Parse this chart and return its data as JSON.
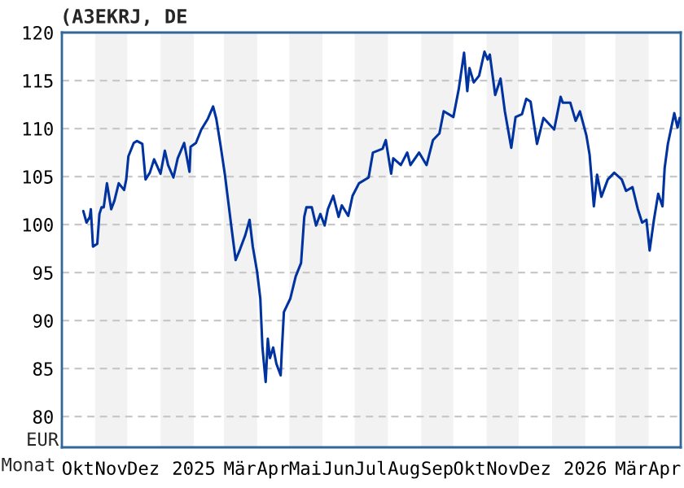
{
  "chart_data": {
    "type": "line",
    "title": "(A3EKRJ, DE",
    "xlabel": "Monat",
    "ylabel": "EUR",
    "x": [
      "2024-10-21",
      "2024-10-24",
      "2024-10-27",
      "2024-10-28",
      "2024-10-30",
      "2024-11-03",
      "2024-11-05",
      "2024-11-07",
      "2024-11-09",
      "2024-11-12",
      "2024-11-16",
      "2024-11-19",
      "2024-11-23",
      "2024-11-28",
      "2024-11-30",
      "2024-12-02",
      "2024-12-07",
      "2024-12-10",
      "2024-12-15",
      "2024-12-18",
      "2024-12-22",
      "2024-12-26",
      "2025-01-01",
      "2025-01-05",
      "2025-01-08",
      "2025-01-13",
      "2025-01-17",
      "2025-01-23",
      "2025-01-28",
      "2025-01-29",
      "2025-02-03",
      "2025-02-08",
      "2025-02-14",
      "2025-02-19",
      "2025-02-22",
      "2025-02-26",
      "2025-03-02",
      "2025-03-05",
      "2025-03-08",
      "2025-03-12",
      "2025-03-16",
      "2025-03-21",
      "2025-03-25",
      "2025-03-28",
      "2025-04-01",
      "2025-04-04",
      "2025-04-06",
      "2025-04-09",
      "2025-04-11",
      "2025-04-13",
      "2025-04-16",
      "2025-04-19",
      "2025-04-23",
      "2025-04-24",
      "2025-04-26",
      "2025-05-02",
      "2025-05-07",
      "2025-05-12",
      "2025-05-15",
      "2025-05-17",
      "2025-05-22",
      "2025-05-26",
      "2025-05-30",
      "2025-06-03",
      "2025-06-06",
      "2025-06-11",
      "2025-06-16",
      "2025-06-19",
      "2025-06-25",
      "2025-06-29",
      "2025-07-05",
      "2025-07-14",
      "2025-07-18",
      "2025-07-27",
      "2025-07-30",
      "2025-08-04",
      "2025-08-06",
      "2025-08-13",
      "2025-08-19",
      "2025-08-22",
      "2025-08-30",
      "2025-09-06",
      "2025-09-12",
      "2025-09-18",
      "2025-09-22",
      "2025-10-01",
      "2025-10-06",
      "2025-10-11",
      "2025-10-14",
      "2025-10-16",
      "2025-10-20",
      "2025-10-25",
      "2025-10-30",
      "2025-11-02",
      "2025-11-04",
      "2025-11-09",
      "2025-11-14",
      "2025-11-18",
      "2025-11-24",
      "2025-11-28",
      "2025-12-04",
      "2025-12-08",
      "2025-12-12",
      "2025-12-18",
      "2025-12-24",
      "2026-01-03",
      "2026-01-09",
      "2026-01-11",
      "2026-01-18",
      "2026-01-23",
      "2026-01-27",
      "2026-02-02",
      "2026-02-05",
      "2026-02-09",
      "2026-02-12",
      "2026-02-16",
      "2026-02-22",
      "2026-02-28",
      "2026-03-07",
      "2026-03-11",
      "2026-03-17",
      "2026-03-22",
      "2026-03-26",
      "2026-03-30",
      "2026-04-02",
      "2026-04-06",
      "2026-04-10",
      "2026-04-14",
      "2026-04-16",
      "2026-04-19",
      "2026-04-25",
      "2026-04-28",
      "2026-04-30"
    ],
    "series": [
      {
        "color": "#0033a0",
        "values": [
          101.4,
          100.2,
          100.8,
          101.6,
          97.7,
          98,
          101.1,
          101.8,
          101.8,
          104.3,
          101.6,
          102.5,
          104.3,
          103.6,
          104.7,
          107.1,
          108.5,
          108.7,
          108.4,
          104.7,
          105.4,
          106.8,
          105.3,
          107.7,
          106.2,
          104.9,
          106.9,
          108.5,
          105.5,
          108.1,
          108.5,
          109.9,
          111,
          112.3,
          111,
          108.2,
          105.2,
          102.5,
          99.8,
          96.3,
          97.4,
          98.9,
          100.5,
          97.7,
          95.1,
          92.3,
          87.2,
          83.6,
          88.1,
          86.1,
          87.2,
          85.5,
          84.3,
          86.7,
          90.9,
          92.3,
          94.6,
          96,
          100.8,
          101.8,
          101.8,
          99.9,
          101.1,
          99.9,
          101.6,
          103,
          100.8,
          102,
          100.9,
          103,
          104.3,
          104.9,
          107.5,
          107.9,
          108.8,
          105.3,
          106.9,
          106.2,
          107.5,
          106.2,
          107.5,
          106.2,
          108.8,
          109.5,
          111.8,
          111.2,
          114.1,
          117.9,
          113.9,
          116.3,
          114.8,
          115.5,
          118,
          117.2,
          117.7,
          113.5,
          115.2,
          111.8,
          108,
          111.2,
          111.5,
          113.1,
          112.8,
          108.4,
          111.1,
          109.9,
          113.3,
          112.7,
          112.7,
          110.8,
          111.8,
          109.3,
          107.3,
          101.9,
          105.2,
          102.9,
          104.7,
          105.4,
          104.7,
          103.5,
          103.9,
          101.6,
          100.2,
          100.5,
          97.3,
          100.5,
          103.2,
          101.9,
          105.9,
          108.4,
          111.6,
          110.1,
          111.1
        ]
      }
    ],
    "xlim": [
      "2024-10-01",
      "2026-05-01"
    ],
    "xticks": [
      {
        "value": "2024-10-16",
        "label": "Okt"
      },
      {
        "value": "2024-11-16",
        "label": "Nov"
      },
      {
        "value": "2024-12-16",
        "label": "Dez"
      },
      {
        "value": "2025-02-01",
        "label": "2025"
      },
      {
        "value": "2025-03-16",
        "label": "Mär"
      },
      {
        "value": "2025-04-16",
        "label": "Apr"
      },
      {
        "value": "2025-05-16",
        "label": "Mai"
      },
      {
        "value": "2025-06-16",
        "label": "Jun"
      },
      {
        "value": "2025-07-16",
        "label": "Jul"
      },
      {
        "value": "2025-08-16",
        "label": "Aug"
      },
      {
        "value": "2025-09-16",
        "label": "Sep"
      },
      {
        "value": "2025-10-16",
        "label": "Okt"
      },
      {
        "value": "2025-11-16",
        "label": "Nov"
      },
      {
        "value": "2025-12-16",
        "label": "Dez"
      },
      {
        "value": "2026-02-01",
        "label": "2026"
      },
      {
        "value": "2026-03-16",
        "label": "Mär"
      },
      {
        "value": "2026-04-16",
        "label": "Apr"
      }
    ],
    "ylim": [
      76.8,
      120
    ],
    "yticks": [
      80,
      85,
      90,
      95,
      100,
      105,
      110,
      115,
      120
    ],
    "bands": [
      {
        "axis": "x",
        "from": "2024-11-01",
        "to": "2024-12-01",
        "color": "#f2f2f2"
      },
      {
        "axis": "x",
        "from": "2025-01-01",
        "to": "2025-02-01",
        "color": "#f2f2f2"
      },
      {
        "axis": "x",
        "from": "2025-03-01",
        "to": "2025-04-01",
        "color": "#f2f2f2"
      },
      {
        "axis": "x",
        "from": "2025-05-01",
        "to": "2025-06-01",
        "color": "#f2f2f2"
      },
      {
        "axis": "x",
        "from": "2025-07-01",
        "to": "2025-08-01",
        "color": "#f2f2f2"
      },
      {
        "axis": "x",
        "from": "2025-09-01",
        "to": "2025-10-01",
        "color": "#f2f2f2"
      },
      {
        "axis": "x",
        "from": "2025-11-01",
        "to": "2025-12-01",
        "color": "#f2f2f2"
      },
      {
        "axis": "x",
        "from": "2026-01-01",
        "to": "2026-02-01",
        "color": "#f2f2f2"
      },
      {
        "axis": "x",
        "from": "2026-03-01",
        "to": "2026-04-01",
        "color": "#f2f2f2"
      }
    ],
    "grid": "y",
    "line_style": "solid"
  }
}
